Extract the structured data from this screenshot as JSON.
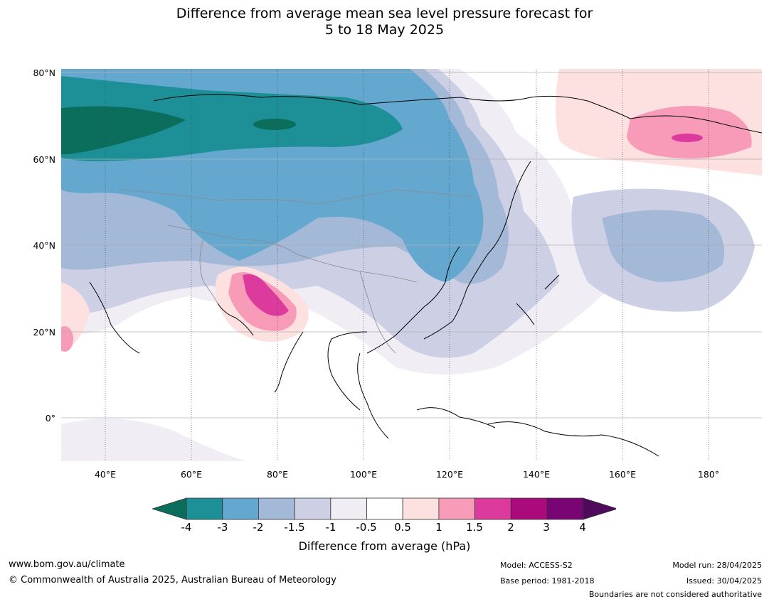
{
  "title": {
    "line1": "Difference from average mean sea level pressure forecast for",
    "line2": "5 to 18 May 2025"
  },
  "map": {
    "lat_labels": [
      "80°N",
      "60°N",
      "40°N",
      "20°N",
      "0°"
    ],
    "lon_labels": [
      "40°E",
      "60°E",
      "80°E",
      "100°E",
      "120°E",
      "140°E",
      "160°E",
      "180°"
    ]
  },
  "colorbar": {
    "ticks": [
      "-4",
      "-3",
      "-2",
      "-1.5",
      "-1",
      "-0.5",
      "0.5",
      "1",
      "1.5",
      "2",
      "3",
      "4"
    ],
    "colors": [
      "#0b6e5c",
      "#1d8f97",
      "#64a8cf",
      "#a4b8d8",
      "#cdd0e4",
      "#f1edf4",
      "#ffffff",
      "#fde0e0",
      "#f79bb8",
      "#dd3a9e",
      "#aa0a7b",
      "#790575",
      "#4f0a5e"
    ],
    "label": "Difference from average (hPa)"
  },
  "footer": {
    "website": "www.bom.gov.au/climate",
    "copyright": "© Commonwealth of Australia 2025, Australian Bureau of Meteorology",
    "model": "Model: ACCESS-S2",
    "base_period": "Base period: 1981-2018",
    "model_run": "Model run: 28/04/2025",
    "issued": "Issued: 30/04/2025",
    "boundaries": "Boundaries are not considered authoritative"
  }
}
